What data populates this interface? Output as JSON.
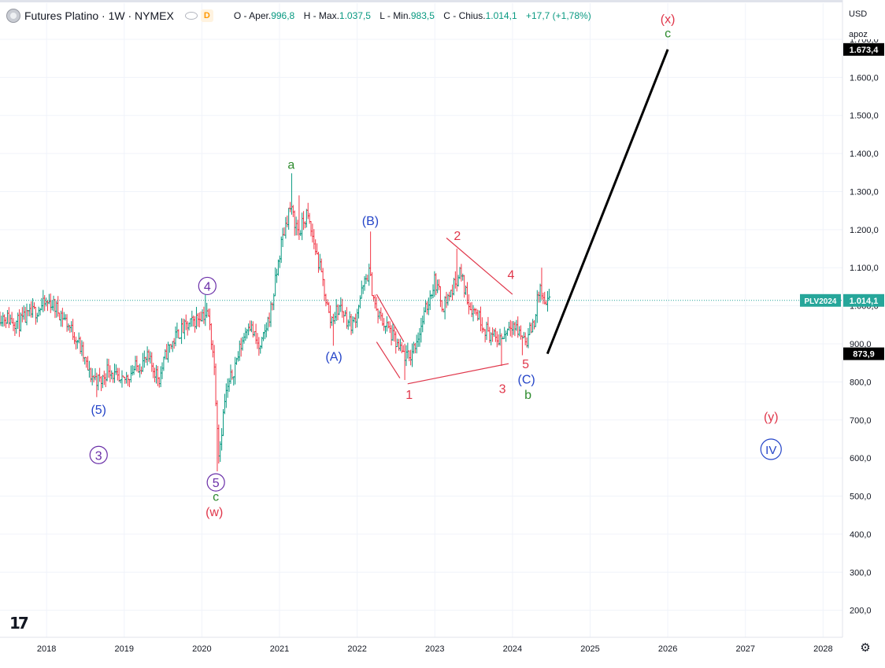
{
  "legend": {
    "title": "Futures Platino · 1W · NYMEX",
    "badge": "D",
    "ohlc": [
      {
        "label": "O - Aper.",
        "value": "996,8"
      },
      {
        "label": "H - Max.",
        "value": "1.037,5"
      },
      {
        "label": "L - Min.",
        "value": "983,5"
      },
      {
        "label": "C - Chius.",
        "value": "1.014,1"
      },
      {
        "label": "",
        "value": "+17,7 (+1,78%)"
      }
    ]
  },
  "currency": "USD",
  "scale_mode": "apoz",
  "colors": {
    "up": "#089981",
    "down": "#f23645",
    "red_wave": "#e0364a",
    "blue_wave": "#2444c8",
    "purple_wave": "#6a2fa8",
    "green_wave": "#2e8b2e",
    "projection": "#000000",
    "price_line": "#26a69a",
    "grid": "#f0f3fa"
  },
  "chart_data": {
    "type": "ohlc",
    "symbol": "PLV2024",
    "interval": "1W",
    "x_axis": {
      "ticks": [
        "2018",
        "2019",
        "2020",
        "2021",
        "2022",
        "2023",
        "2024",
        "2025",
        "2026",
        "2027",
        "2028"
      ],
      "range_years": [
        2017.4,
        2028.25
      ]
    },
    "y_axis": {
      "ticks": [
        "200,0",
        "300,0",
        "400,0",
        "500,0",
        "600,0",
        "700,0",
        "800,0",
        "900,0",
        "1.000,0",
        "1.100,0",
        "1.200,0",
        "1.300,0",
        "1.400,0",
        "1.500,0",
        "1.600,0",
        "1.700,0"
      ],
      "range": [
        129,
        1795
      ]
    },
    "last_price": {
      "value": 1014.1,
      "label": "1.014,1",
      "symbol": "PLV2024"
    },
    "price_labels": [
      {
        "value": 1673.4,
        "label": "1.673,4"
      },
      {
        "value": 873.9,
        "label": "873,9"
      }
    ],
    "anchors": [
      [
        2017.4,
        975
      ],
      [
        2017.65,
        955
      ],
      [
        2017.95,
        1000
      ],
      [
        2018.05,
        1010
      ],
      [
        2018.2,
        975
      ],
      [
        2018.4,
        910
      ],
      [
        2018.55,
        820
      ],
      [
        2018.7,
        800
      ],
      [
        2018.8,
        840
      ],
      [
        2018.95,
        790
      ],
      [
        2019.1,
        830
      ],
      [
        2019.3,
        860
      ],
      [
        2019.45,
        810
      ],
      [
        2019.55,
        880
      ],
      [
        2019.7,
        930
      ],
      [
        2019.85,
        950
      ],
      [
        2020.0,
        980
      ],
      [
        2020.08,
        975
      ],
      [
        2020.15,
        870
      ],
      [
        2020.22,
        610
      ],
      [
        2020.3,
        760
      ],
      [
        2020.45,
        860
      ],
      [
        2020.6,
        960
      ],
      [
        2020.75,
        880
      ],
      [
        2020.9,
        1000
      ],
      [
        2021.02,
        1160
      ],
      [
        2021.13,
        1260
      ],
      [
        2021.25,
        1190
      ],
      [
        2021.35,
        1240
      ],
      [
        2021.45,
        1160
      ],
      [
        2021.55,
        1070
      ],
      [
        2021.65,
        960
      ],
      [
        2021.78,
        1000
      ],
      [
        2021.88,
        960
      ],
      [
        2021.95,
        950
      ],
      [
        2022.05,
        1030
      ],
      [
        2022.15,
        1090
      ],
      [
        2022.25,
        980
      ],
      [
        2022.4,
        940
      ],
      [
        2022.55,
        880
      ],
      [
        2022.67,
        860
      ],
      [
        2022.8,
        930
      ],
      [
        2022.9,
        1000
      ],
      [
        2023.0,
        1070
      ],
      [
        2023.1,
        1000
      ],
      [
        2023.22,
        1040
      ],
      [
        2023.32,
        1090
      ],
      [
        2023.45,
        1000
      ],
      [
        2023.55,
        980
      ],
      [
        2023.65,
        940
      ],
      [
        2023.78,
        910
      ],
      [
        2023.88,
        920
      ],
      [
        2023.98,
        960
      ],
      [
        2024.08,
        930
      ],
      [
        2024.18,
        910
      ],
      [
        2024.28,
        960
      ],
      [
        2024.35,
        1050
      ],
      [
        2024.42,
        990
      ],
      [
        2024.48,
        1014
      ]
    ],
    "extremes": [
      {
        "t": 2018.05,
        "h": 1030
      },
      {
        "t": 2018.65,
        "l": 760
      },
      {
        "t": 2020.05,
        "h": 1040
      },
      {
        "t": 2020.2,
        "l": 565
      },
      {
        "t": 2021.15,
        "h": 1348
      },
      {
        "t": 2021.25,
        "h": 1290
      },
      {
        "t": 2022.17,
        "h": 1195
      },
      {
        "t": 2021.7,
        "l": 895
      },
      {
        "t": 2022.62,
        "l": 805
      },
      {
        "t": 2023.28,
        "h": 1150
      },
      {
        "t": 2023.86,
        "l": 842
      },
      {
        "t": 2024.38,
        "h": 1100
      },
      {
        "t": 2024.12,
        "l": 870
      }
    ],
    "projection": [
      [
        2024.45,
        873.9
      ],
      [
        2026.0,
        1673.4
      ]
    ],
    "lines": [
      [
        [
          2022.25,
          1030
        ],
        [
          2022.6,
          905
        ]
      ],
      [
        [
          2022.25,
          905
        ],
        [
          2022.55,
          810
        ]
      ],
      [
        [
          2022.65,
          795
        ],
        [
          2023.95,
          848
        ]
      ],
      [
        [
          2023.15,
          1178
        ],
        [
          2024.0,
          1030
        ]
      ]
    ],
    "labels": [
      {
        "text": "a",
        "t": 2021.15,
        "p": 1372,
        "color": "green",
        "circle": false
      },
      {
        "text": "(B)",
        "t": 2022.17,
        "p": 1225,
        "color": "blue",
        "circle": false
      },
      {
        "text": "(A)",
        "t": 2021.7,
        "p": 868,
        "color": "blue",
        "circle": false
      },
      {
        "text": "1",
        "t": 2022.67,
        "p": 768,
        "color": "red",
        "circle": false
      },
      {
        "text": "2",
        "t": 2023.29,
        "p": 1185,
        "color": "red",
        "circle": false
      },
      {
        "text": "3",
        "t": 2023.87,
        "p": 783,
        "color": "red",
        "circle": false
      },
      {
        "text": "4",
        "t": 2023.98,
        "p": 1083,
        "color": "red",
        "circle": false
      },
      {
        "text": "5",
        "t": 2024.17,
        "p": 848,
        "color": "red",
        "circle": false
      },
      {
        "text": "(C)",
        "t": 2024.18,
        "p": 808,
        "color": "blue",
        "circle": false
      },
      {
        "text": "b",
        "t": 2024.2,
        "p": 768,
        "color": "green",
        "circle": false
      },
      {
        "text": "(5)",
        "t": 2018.67,
        "p": 728,
        "color": "blue",
        "circle": false
      },
      {
        "text": "3",
        "t": 2018.67,
        "p": 608,
        "color": "purple",
        "circle": true
      },
      {
        "text": "4",
        "t": 2020.07,
        "p": 1052,
        "color": "purple",
        "circle": true
      },
      {
        "text": "5",
        "t": 2020.18,
        "p": 536,
        "color": "purple",
        "circle": true
      },
      {
        "text": "c",
        "t": 2020.18,
        "p": 500,
        "color": "green",
        "circle": false
      },
      {
        "text": "(w)",
        "t": 2020.16,
        "p": 460,
        "color": "red",
        "circle": false
      },
      {
        "text": "(x)",
        "t": 2026.0,
        "p": 1755,
        "color": "red",
        "circle": false
      },
      {
        "text": "c",
        "t": 2026.0,
        "p": 1718,
        "color": "green",
        "circle": false
      },
      {
        "text": "(y)",
        "t": 2027.33,
        "p": 710,
        "color": "red",
        "circle": false
      },
      {
        "text": "IV",
        "t": 2027.33,
        "p": 623,
        "color": "blue",
        "circle": true
      }
    ]
  }
}
